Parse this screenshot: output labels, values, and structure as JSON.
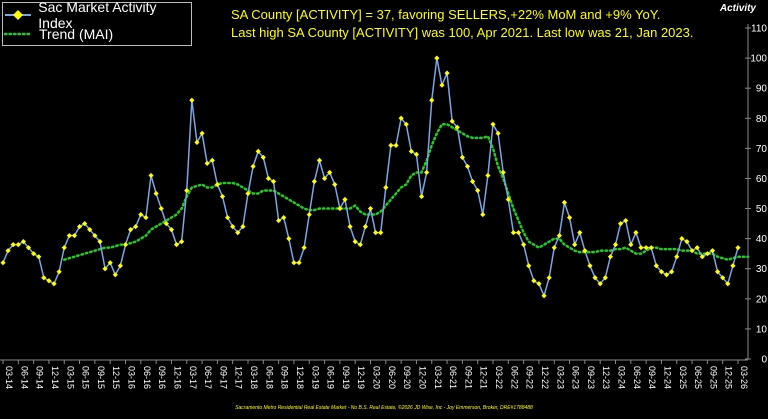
{
  "chart_data": {
    "type": "line",
    "title": "",
    "ylabel": "Activity",
    "ylim": [
      0,
      110
    ],
    "yticks": [
      0,
      10,
      20,
      30,
      40,
      50,
      60,
      70,
      80,
      90,
      100,
      110
    ],
    "grid": false,
    "legend_position": "top-left",
    "annotations": [
      "SA County [ACTIVITY] = 37, favoring SELLERS,+22% MoM and +9% YoY.",
      "Last high SA County [ACTIVITY] was 100, Apr 2021. Last low was 21, Jan 2023."
    ],
    "footer": "Sacramento Metro Residential Real Estate Market - No B.S. Real Estate, ©2026 JD Wise, Inc - Joy Emmerson, Broker, DRE#1788488",
    "x_tick_labels": [
      "03-14",
      "06-14",
      "09-14",
      "12-14",
      "03-15",
      "06-15",
      "09-15",
      "12-15",
      "03-16",
      "06-16",
      "09-16",
      "12-16",
      "03-17",
      "06-17",
      "09-17",
      "12-17",
      "03-18",
      "06-18",
      "09-18",
      "12-18",
      "03-19",
      "06-19",
      "09-19",
      "12-19",
      "03-20",
      "06-20",
      "09-20",
      "12-20",
      "03-21",
      "06-21",
      "09-21",
      "12-21",
      "03-22",
      "06-22",
      "09-22",
      "12-22",
      "03-23",
      "06-23",
      "09-23",
      "12-23",
      "03-24",
      "06-24",
      "09-24",
      "12-24",
      "03-25",
      "06-25",
      "09-25",
      "12-25",
      "03-26"
    ],
    "series": [
      {
        "name": "Sac Market Activity Index",
        "color": "#7aa6e6",
        "marker_color": "#ffff00",
        "values": [
          32,
          36,
          38,
          38,
          39,
          37,
          35,
          34,
          27,
          26,
          25,
          29,
          37,
          41,
          41,
          44,
          45,
          43,
          41,
          39,
          30,
          32,
          28,
          31,
          38,
          43,
          44,
          48,
          47,
          61,
          55,
          50,
          45,
          43,
          38,
          39,
          56,
          86,
          72,
          75,
          65,
          66,
          58,
          54,
          47,
          44,
          42,
          44,
          55,
          64,
          69,
          67,
          60,
          59,
          46,
          47,
          40,
          32,
          32,
          37,
          48,
          59,
          66,
          60,
          62,
          58,
          50,
          53,
          44,
          39,
          38,
          44,
          50,
          42,
          42,
          57,
          71,
          71,
          80,
          78,
          69,
          68,
          54,
          62,
          86,
          100,
          91,
          95,
          79,
          77,
          67,
          64,
          59,
          56,
          48,
          61,
          78,
          75,
          62,
          53,
          42,
          42,
          38,
          31,
          26,
          25,
          21,
          27,
          37,
          41,
          52,
          47,
          38,
          42,
          36,
          31,
          27,
          25,
          27,
          34,
          38,
          45,
          46,
          38,
          42,
          37,
          37,
          37,
          31,
          29,
          28,
          29,
          34,
          40,
          39,
          36,
          37,
          34,
          35,
          36,
          29,
          27,
          25,
          31,
          37
        ]
      },
      {
        "name": "Trend (MAI)",
        "color": "#22cc22",
        "style": "dotted",
        "values": [
          null,
          null,
          null,
          null,
          null,
          null,
          null,
          null,
          null,
          null,
          null,
          null,
          33,
          33.5,
          34,
          34.5,
          35,
          35.5,
          36,
          36.5,
          37,
          37,
          37.5,
          38,
          38,
          38.5,
          39,
          40,
          41,
          43,
          44,
          45,
          46,
          47,
          48,
          50,
          54,
          57,
          57.5,
          58,
          57,
          57,
          58,
          58.5,
          58.5,
          58.5,
          58,
          57,
          56,
          55,
          55,
          56,
          56,
          56,
          55,
          54,
          53,
          52,
          51,
          50,
          49.5,
          49.5,
          50,
          50,
          50,
          50,
          50,
          50,
          50,
          51,
          49,
          48,
          48,
          48,
          49,
          51,
          53,
          55,
          57,
          58,
          61,
          62,
          62,
          66,
          71,
          75,
          78,
          78,
          77,
          76,
          75,
          74,
          73.5,
          73.5,
          73.5,
          74,
          70,
          64,
          60,
          55,
          50,
          46,
          42,
          39,
          38,
          37,
          38,
          39,
          40,
          40,
          38,
          37,
          36,
          35.5,
          35.5,
          35.5,
          35.5,
          36,
          36,
          36,
          36.5,
          36.5,
          37,
          36,
          35,
          35,
          36,
          37,
          37,
          36.5,
          36.5,
          36.5,
          36.5,
          36,
          36,
          36,
          35,
          35,
          35,
          35,
          34,
          33.5,
          33,
          33.5,
          34,
          34,
          34
        ]
      }
    ]
  },
  "legend": {
    "series1_label": "Sac Market Activity Index",
    "series2_label": "Trend (MAI)"
  }
}
